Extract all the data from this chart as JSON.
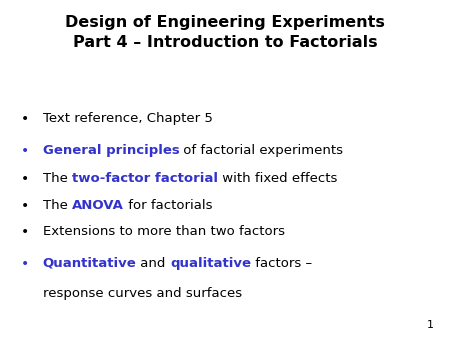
{
  "background_color": "#ffffff",
  "title_line1": "Design of Engineering Experiments",
  "title_line2": "Part 4 – Introduction to Factorials",
  "title_fontsize": 11.5,
  "title_color": "#000000",
  "blue_color": "#3333cc",
  "body_fontsize": 9.5,
  "page_number": "1",
  "bullets": [
    {
      "segments": [
        {
          "text": "Text reference, Chapter 5",
          "color": "#000000",
          "bold": false
        }
      ],
      "bullet_blue": false
    },
    {
      "segments": [
        {
          "text": "General principles",
          "color": "#3333cc",
          "bold": true
        },
        {
          "text": " of factorial experiments",
          "color": "#000000",
          "bold": false
        }
      ],
      "bullet_blue": true
    },
    {
      "segments": [
        {
          "text": "The ",
          "color": "#000000",
          "bold": false
        },
        {
          "text": "two-factor factorial",
          "color": "#3333cc",
          "bold": true
        },
        {
          "text": " with fixed effects",
          "color": "#000000",
          "bold": false
        }
      ],
      "bullet_blue": false
    },
    {
      "segments": [
        {
          "text": "The ",
          "color": "#000000",
          "bold": false
        },
        {
          "text": "ANOVA",
          "color": "#3333cc",
          "bold": true
        },
        {
          "text": " for factorials",
          "color": "#000000",
          "bold": false
        }
      ],
      "bullet_blue": false
    },
    {
      "segments": [
        {
          "text": "Extensions to more than two factors",
          "color": "#000000",
          "bold": false
        }
      ],
      "bullet_blue": false
    },
    {
      "segments": [
        {
          "text": "Quantitative",
          "color": "#3333cc",
          "bold": true
        },
        {
          "text": " and ",
          "color": "#000000",
          "bold": false
        },
        {
          "text": "qualitative",
          "color": "#3333cc",
          "bold": true
        },
        {
          "text": " factors –",
          "color": "#000000",
          "bold": false
        }
      ],
      "bullet_blue": true,
      "continuation": "response curves and surfaces"
    }
  ]
}
